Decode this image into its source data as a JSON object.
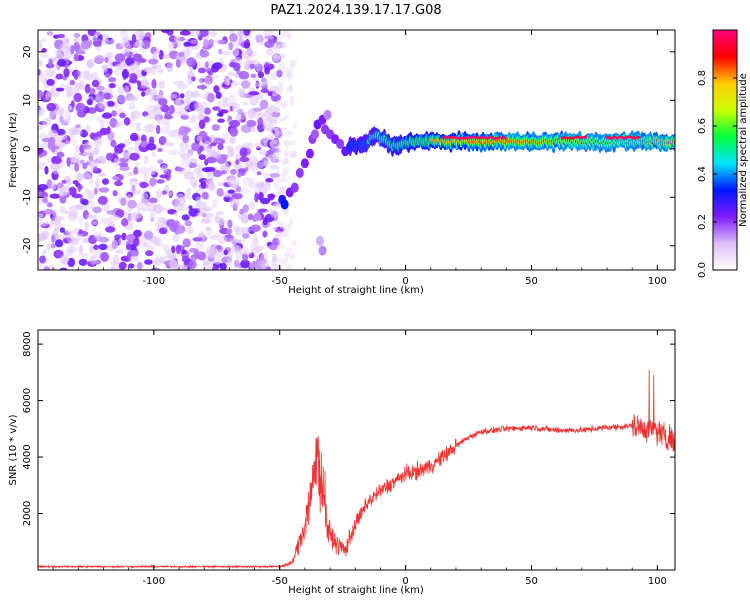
{
  "figure": {
    "title": "PAZ1.2024.139.17.17.G08"
  },
  "chart_data": [
    {
      "type": "heatmap",
      "xlabel": "Height of straight line (km)",
      "ylabel": "Frequency (Hz)",
      "xlim": [
        -146,
        107
      ],
      "ylim": [
        -25,
        24.5
      ],
      "xticks": [
        -100,
        -50,
        0,
        50,
        100
      ],
      "yticks": [
        -20,
        -10,
        0,
        10,
        20
      ],
      "colorbar": {
        "label": "Normalized spectral amplitude",
        "range": [
          0,
          1
        ],
        "ticks": [
          "0.0",
          "0.2",
          "0.4",
          "0.6",
          "0.8"
        ],
        "colormap": "gist_rainbow_r",
        "colors": [
          "#ffffff",
          "#dcbef5",
          "#7e1bff",
          "#0017ff",
          "#00e5ff",
          "#00ff3c",
          "#ccff00",
          "#ffcc00",
          "#ff0000",
          "#ff007d"
        ]
      },
      "regions": [
        {
          "name": "noise",
          "x_range": [
            -146,
            -50
          ],
          "y_range": [
            -25,
            24.5
          ],
          "amplitude": [
            0.03,
            0.15
          ]
        },
        {
          "name": "transition",
          "x_range": [
            -50,
            -22
          ],
          "peak_frequency": [
            -11,
            6
          ],
          "amplitude": [
            0.15,
            0.35
          ]
        },
        {
          "name": "signal",
          "x_range": [
            -22,
            107
          ],
          "peak_frequency": 1.5,
          "amplitude": [
            0.4,
            1.0
          ]
        }
      ]
    },
    {
      "type": "line",
      "xlabel": "Height of straight line (km)",
      "ylabel": "SNR (10 * v/v)",
      "xlim": [
        -146,
        107
      ],
      "ylim": [
        0,
        8500
      ],
      "xticks": [
        -100,
        -50,
        0,
        50,
        100
      ],
      "yticks": [
        2000,
        4000,
        6000,
        8000
      ],
      "color": "#ee3333",
      "profile": {
        "x": [
          -146,
          -50,
          -45,
          -40,
          -37,
          -35,
          -33,
          -30,
          -27,
          -24,
          -20,
          -15,
          -10,
          -5,
          0,
          5,
          10,
          15,
          20,
          25,
          30,
          40,
          50,
          60,
          70,
          80,
          90,
          95,
          100,
          105,
          107
        ],
        "y": [
          120,
          120,
          250,
          1600,
          3000,
          4300,
          2600,
          1200,
          900,
          700,
          1600,
          2400,
          2800,
          3100,
          3400,
          3500,
          3700,
          4000,
          4400,
          4700,
          4900,
          5000,
          5050,
          4950,
          4950,
          5050,
          5100,
          5000,
          4900,
          4700,
          4500
        ]
      }
    }
  ]
}
